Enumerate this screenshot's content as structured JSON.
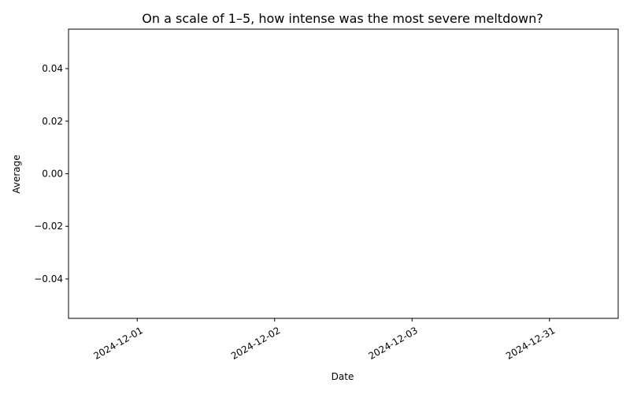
{
  "chart_data": {
    "type": "line",
    "title": "On a scale of 1–5, how intense was the most severe meltdown?",
    "xlabel": "Date",
    "ylabel": "Average",
    "x_categories": [
      "2024-12-01",
      "2024-12-02",
      "2024-12-03",
      "2024-12-31"
    ],
    "y_ticks": [
      0.04,
      0.02,
      0.0,
      -0.02,
      -0.04
    ],
    "y_tick_labels": [
      "0.04",
      "0.02",
      "0.00",
      "−0.02",
      "−0.04"
    ],
    "ylim": [
      -0.055,
      0.055
    ],
    "series": [],
    "grid": false,
    "legend": "none"
  }
}
